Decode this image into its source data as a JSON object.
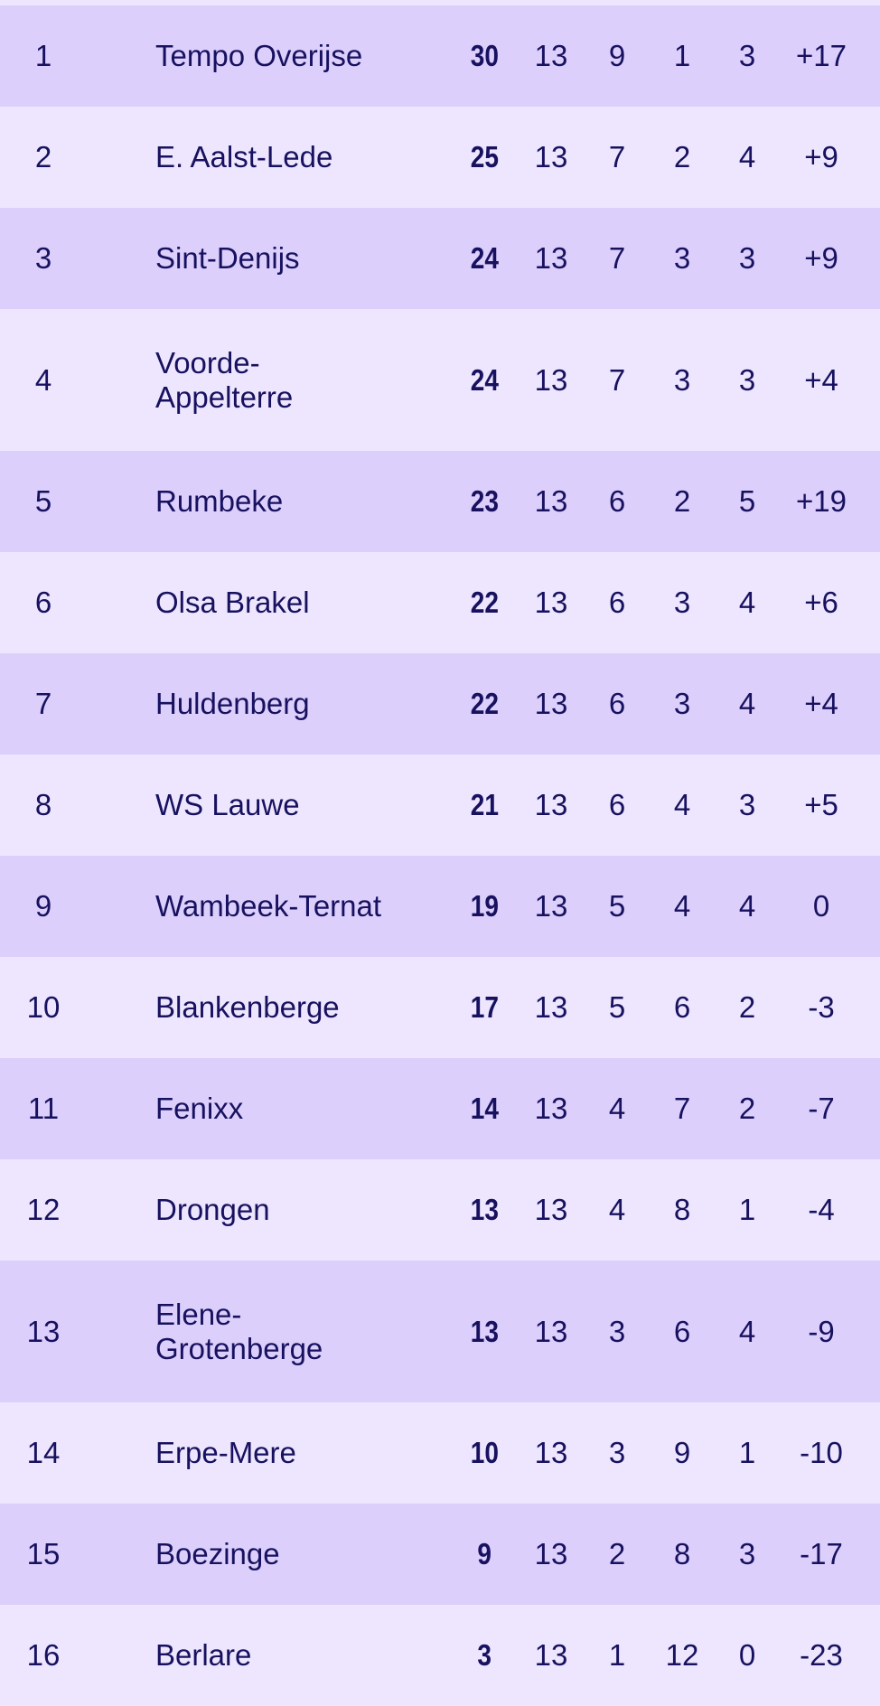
{
  "colors": {
    "row_dark": "#dccffc",
    "row_light": "#ede6fe",
    "text": "#17115f"
  },
  "standings": [
    {
      "rank": "1",
      "team": "Tempo Overijse",
      "pts": "30",
      "played": "13",
      "won": "9",
      "drawn": "1",
      "lost": "3",
      "gd": "+17"
    },
    {
      "rank": "2",
      "team": "E. Aalst-Lede",
      "pts": "25",
      "played": "13",
      "won": "7",
      "drawn": "2",
      "lost": "4",
      "gd": "+9"
    },
    {
      "rank": "3",
      "team": "Sint-Denijs",
      "pts": "24",
      "played": "13",
      "won": "7",
      "drawn": "3",
      "lost": "3",
      "gd": "+9"
    },
    {
      "rank": "4",
      "team": "Voorde-Appelterre",
      "pts": "24",
      "played": "13",
      "won": "7",
      "drawn": "3",
      "lost": "3",
      "gd": "+4"
    },
    {
      "rank": "5",
      "team": "Rumbeke",
      "pts": "23",
      "played": "13",
      "won": "6",
      "drawn": "2",
      "lost": "5",
      "gd": "+19"
    },
    {
      "rank": "6",
      "team": "Olsa Brakel",
      "pts": "22",
      "played": "13",
      "won": "6",
      "drawn": "3",
      "lost": "4",
      "gd": "+6"
    },
    {
      "rank": "7",
      "team": "Huldenberg",
      "pts": "22",
      "played": "13",
      "won": "6",
      "drawn": "3",
      "lost": "4",
      "gd": "+4"
    },
    {
      "rank": "8",
      "team": "WS Lauwe",
      "pts": "21",
      "played": "13",
      "won": "6",
      "drawn": "4",
      "lost": "3",
      "gd": "+5"
    },
    {
      "rank": "9",
      "team": "Wambeek-Ternat",
      "pts": "19",
      "played": "13",
      "won": "5",
      "drawn": "4",
      "lost": "4",
      "gd": "0"
    },
    {
      "rank": "10",
      "team": "Blankenberge",
      "pts": "17",
      "played": "13",
      "won": "5",
      "drawn": "6",
      "lost": "2",
      "gd": "-3"
    },
    {
      "rank": "11",
      "team": "Fenixx",
      "pts": "14",
      "played": "13",
      "won": "4",
      "drawn": "7",
      "lost": "2",
      "gd": "-7"
    },
    {
      "rank": "12",
      "team": "Drongen",
      "pts": "13",
      "played": "13",
      "won": "4",
      "drawn": "8",
      "lost": "1",
      "gd": "-4"
    },
    {
      "rank": "13",
      "team": "Elene-Grotenberge",
      "pts": "13",
      "played": "13",
      "won": "3",
      "drawn": "6",
      "lost": "4",
      "gd": "-9"
    },
    {
      "rank": "14",
      "team": "Erpe-Mere",
      "pts": "10",
      "played": "13",
      "won": "3",
      "drawn": "9",
      "lost": "1",
      "gd": "-10"
    },
    {
      "rank": "15",
      "team": "Boezinge",
      "pts": "9",
      "played": "13",
      "won": "2",
      "drawn": "8",
      "lost": "3",
      "gd": "-17"
    },
    {
      "rank": "16",
      "team": "Berlare",
      "pts": "3",
      "played": "13",
      "won": "1",
      "drawn": "12",
      "lost": "0",
      "gd": "-23"
    }
  ]
}
